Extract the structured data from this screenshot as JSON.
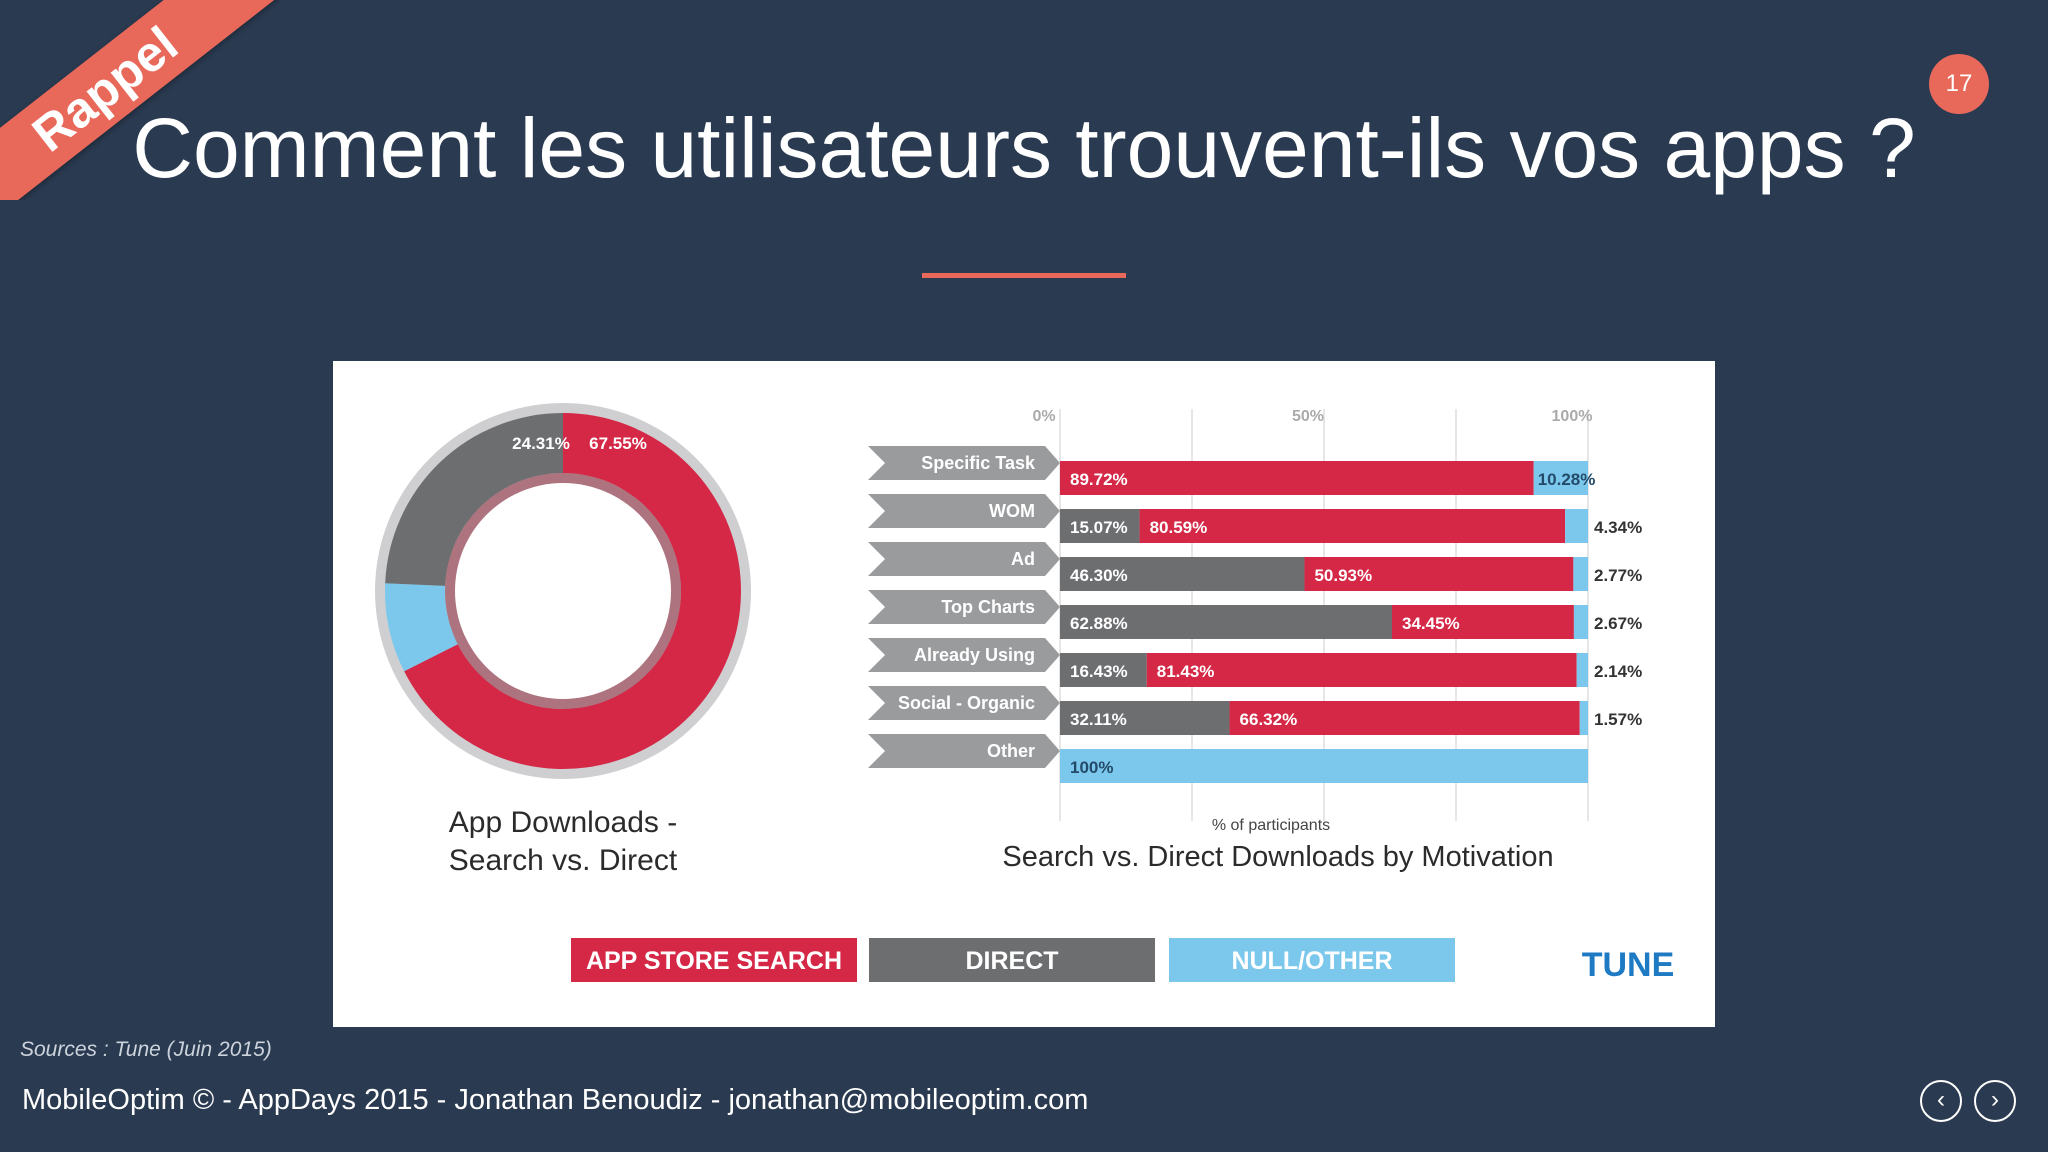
{
  "slide": {
    "ribbon": "Rappel",
    "page_number": "17",
    "title": "Comment les utilisateurs trouvent-ils vos apps ?",
    "source": "Sources : Tune (Juin 2015)",
    "footer": "MobileOptim © - AppDays 2015 - Jonathan Benoudiz - jonathan@mobileoptim.com",
    "nav_prev": "‹",
    "nav_next": "›"
  },
  "colors": {
    "search": "#d42846",
    "direct": "#6d6e70",
    "null": "#7cc8ec",
    "accent": "#e8695a"
  },
  "chart_data": [
    {
      "type": "pie",
      "title": "App Downloads - Search vs. Direct",
      "title_lines": [
        "App Downloads -",
        "Search vs. Direct"
      ],
      "slices": [
        {
          "name": "APP STORE SEARCH",
          "value": 67.55,
          "label": "67.55%"
        },
        {
          "name": "NULL/OTHER",
          "value": 8.14,
          "label": "8.14%"
        },
        {
          "name": "DIRECT",
          "value": 24.31,
          "label": "24.31%"
        }
      ]
    },
    {
      "type": "bar",
      "orientation": "horizontal",
      "stacked": true,
      "title": "Search vs. Direct Downloads by Motivation",
      "xlabel": "% of participants",
      "xlim": [
        0,
        100
      ],
      "xticks": [
        "0%",
        "50%",
        "100%"
      ],
      "categories": [
        "Specific Task",
        "WOM",
        "Ad",
        "Top Charts",
        "Already Using",
        "Social - Organic",
        "Other"
      ],
      "series": [
        {
          "name": "DIRECT",
          "values": [
            0,
            15.07,
            46.3,
            62.88,
            16.43,
            32.11,
            0
          ],
          "labels": [
            "",
            "15.07%",
            "46.30%",
            "62.88%",
            "16.43%",
            "32.11%",
            ""
          ]
        },
        {
          "name": "APP STORE SEARCH",
          "values": [
            89.72,
            80.59,
            50.93,
            34.45,
            81.43,
            66.32,
            0
          ],
          "labels": [
            "89.72%",
            "80.59%",
            "50.93%",
            "34.45%",
            "81.43%",
            "66.32%",
            ""
          ]
        },
        {
          "name": "NULL/OTHER",
          "values": [
            10.28,
            4.34,
            2.77,
            2.67,
            2.14,
            1.57,
            100
          ],
          "labels": [
            "10.28%",
            "4.34%",
            "2.77%",
            "2.67%",
            "2.14%",
            "1.57%",
            "100%"
          ]
        }
      ]
    }
  ],
  "legend": {
    "items": [
      {
        "name": "APP STORE SEARCH",
        "label": "APP STORE SEARCH"
      },
      {
        "name": "DIRECT",
        "label": "DIRECT"
      },
      {
        "name": "NULL/OTHER",
        "label": "NULL/OTHER"
      }
    ]
  },
  "brand": "TUNE"
}
